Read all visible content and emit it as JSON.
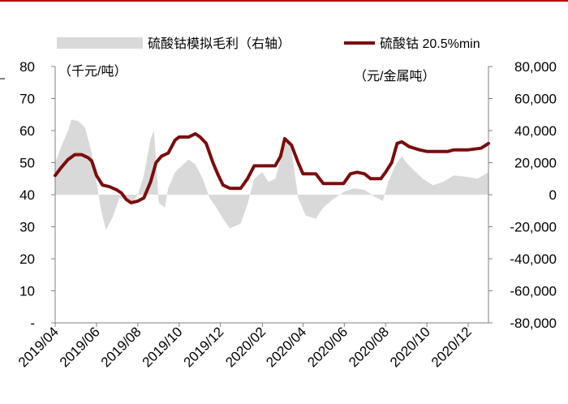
{
  "chart_data": {
    "type": "line",
    "legend": {
      "position": "top",
      "entries": [
        {
          "label": "硫酸钴模拟毛利（右轴）",
          "kind": "area",
          "color": "#d9d9d9"
        },
        {
          "label": "硫酸钴 20.5%min",
          "kind": "line",
          "color": "#7b0c0c"
        }
      ]
    },
    "left_axis": {
      "unit_label": "（千元/吨）",
      "range": [
        0,
        80
      ],
      "ticks": [
        "-",
        "10",
        "20",
        "30",
        "40",
        "50",
        "60",
        "70",
        "80"
      ]
    },
    "right_axis": {
      "unit_label": "（元/金属吨）",
      "range": [
        -80000,
        80000
      ],
      "ticks": [
        "-80,000",
        "-60,000",
        "-40,000",
        "-20,000",
        "0",
        "20,000",
        "40,000",
        "60,000",
        "80,000"
      ]
    },
    "x_axis": {
      "ticks": [
        "2019/04",
        "2019/06",
        "2019/08",
        "2019/10",
        "2019/12",
        "2020/02",
        "2020/04",
        "2020/06",
        "2020/08",
        "2020/10",
        "2020/12"
      ],
      "range": [
        "2019-04-01",
        "2020-12-31"
      ]
    },
    "series": [
      {
        "name": "硫酸钴 20.5%min",
        "axis": "left",
        "color": "#7b0c0c",
        "points": [
          [
            "2019-04-01",
            46.0
          ],
          [
            "2019-04-10",
            48.5
          ],
          [
            "2019-04-20",
            51.0
          ],
          [
            "2019-04-30",
            52.5
          ],
          [
            "2019-05-10",
            52.5
          ],
          [
            "2019-05-20",
            51.5
          ],
          [
            "2019-05-25",
            50.5
          ],
          [
            "2019-06-01",
            46.0
          ],
          [
            "2019-06-10",
            43.0
          ],
          [
            "2019-06-20",
            42.5
          ],
          [
            "2019-07-01",
            41.5
          ],
          [
            "2019-07-08",
            40.5
          ],
          [
            "2019-07-15",
            38.5
          ],
          [
            "2019-07-22",
            37.5
          ],
          [
            "2019-08-01",
            38.0
          ],
          [
            "2019-08-10",
            39.0
          ],
          [
            "2019-08-20",
            44.0
          ],
          [
            "2019-08-28",
            50.0
          ],
          [
            "2019-09-05",
            52.0
          ],
          [
            "2019-09-15",
            53.0
          ],
          [
            "2019-09-25",
            57.0
          ],
          [
            "2019-10-01",
            58.0
          ],
          [
            "2019-10-15",
            58.0
          ],
          [
            "2019-10-25",
            59.0
          ],
          [
            "2019-11-01",
            58.0
          ],
          [
            "2019-11-10",
            56.0
          ],
          [
            "2019-11-20",
            50.0
          ],
          [
            "2019-11-28",
            46.0
          ],
          [
            "2019-12-05",
            43.0
          ],
          [
            "2019-12-15",
            42.0
          ],
          [
            "2019-12-31",
            42.0
          ],
          [
            "2020-01-10",
            45.0
          ],
          [
            "2020-01-20",
            49.0
          ],
          [
            "2020-02-10",
            49.0
          ],
          [
            "2020-02-20",
            49.0
          ],
          [
            "2020-02-28",
            52.0
          ],
          [
            "2020-03-05",
            57.5
          ],
          [
            "2020-03-15",
            55.5
          ],
          [
            "2020-03-25",
            50.0
          ],
          [
            "2020-04-01",
            46.5
          ],
          [
            "2020-04-20",
            46.5
          ],
          [
            "2020-05-01",
            43.5
          ],
          [
            "2020-05-31",
            43.5
          ],
          [
            "2020-06-10",
            46.5
          ],
          [
            "2020-06-20",
            47.0
          ],
          [
            "2020-07-01",
            46.5
          ],
          [
            "2020-07-10",
            45.0
          ],
          [
            "2020-07-25",
            45.0
          ],
          [
            "2020-08-01",
            47.0
          ],
          [
            "2020-08-10",
            50.0
          ],
          [
            "2020-08-18",
            56.0
          ],
          [
            "2020-08-25",
            56.5
          ],
          [
            "2020-09-05",
            55.0
          ],
          [
            "2020-09-20",
            54.0
          ],
          [
            "2020-10-01",
            53.5
          ],
          [
            "2020-11-01",
            53.5
          ],
          [
            "2020-11-10",
            54.0
          ],
          [
            "2020-12-01",
            54.0
          ],
          [
            "2020-12-20",
            54.5
          ],
          [
            "2020-12-31",
            56.0
          ]
        ]
      },
      {
        "name": "硫酸钴模拟毛利（右轴）",
        "axis": "right",
        "color": "#d9d9d9",
        "points": [
          [
            "2019-04-01",
            20000
          ],
          [
            "2019-04-10",
            30000
          ],
          [
            "2019-04-20",
            40000
          ],
          [
            "2019-04-25",
            47000
          ],
          [
            "2019-05-05",
            46000
          ],
          [
            "2019-05-15",
            42000
          ],
          [
            "2019-05-25",
            26000
          ],
          [
            "2019-06-01",
            8000
          ],
          [
            "2019-06-08",
            -10000
          ],
          [
            "2019-06-15",
            -22000
          ],
          [
            "2019-06-25",
            -14000
          ],
          [
            "2019-07-05",
            -2000
          ],
          [
            "2019-07-15",
            -3000
          ],
          [
            "2019-07-25",
            -5000
          ],
          [
            "2019-08-01",
            0
          ],
          [
            "2019-08-10",
            12000
          ],
          [
            "2019-08-20",
            35000
          ],
          [
            "2019-08-25",
            40000
          ],
          [
            "2019-09-01",
            -5000
          ],
          [
            "2019-09-10",
            -8000
          ],
          [
            "2019-09-15",
            4000
          ],
          [
            "2019-09-25",
            14000
          ],
          [
            "2019-10-05",
            18000
          ],
          [
            "2019-10-15",
            22000
          ],
          [
            "2019-10-25",
            19000
          ],
          [
            "2019-11-05",
            10000
          ],
          [
            "2019-11-15",
            -2000
          ],
          [
            "2019-11-25",
            -8000
          ],
          [
            "2019-12-05",
            -15000
          ],
          [
            "2019-12-15",
            -21000
          ],
          [
            "2019-12-31",
            -18000
          ],
          [
            "2020-01-10",
            -6000
          ],
          [
            "2020-01-20",
            10000
          ],
          [
            "2020-02-01",
            14000
          ],
          [
            "2020-02-10",
            8000
          ],
          [
            "2020-02-20",
            10000
          ],
          [
            "2020-03-01",
            25000
          ],
          [
            "2020-03-08",
            34000
          ],
          [
            "2020-03-15",
            28000
          ],
          [
            "2020-03-25",
            -2000
          ],
          [
            "2020-04-05",
            -13000
          ],
          [
            "2020-04-20",
            -15000
          ],
          [
            "2020-05-01",
            -8000
          ],
          [
            "2020-05-15",
            -3000
          ],
          [
            "2020-06-01",
            2000
          ],
          [
            "2020-06-15",
            4000
          ],
          [
            "2020-07-01",
            3000
          ],
          [
            "2020-07-15",
            -1000
          ],
          [
            "2020-07-28",
            -4000
          ],
          [
            "2020-08-05",
            8000
          ],
          [
            "2020-08-15",
            18000
          ],
          [
            "2020-08-25",
            24000
          ],
          [
            "2020-09-01",
            20000
          ],
          [
            "2020-09-10",
            16000
          ],
          [
            "2020-09-25",
            10000
          ],
          [
            "2020-10-10",
            6000
          ],
          [
            "2020-10-25",
            8000
          ],
          [
            "2020-11-10",
            12000
          ],
          [
            "2020-12-01",
            11000
          ],
          [
            "2020-12-15",
            10000
          ],
          [
            "2020-12-31",
            14000
          ]
        ]
      }
    ]
  }
}
